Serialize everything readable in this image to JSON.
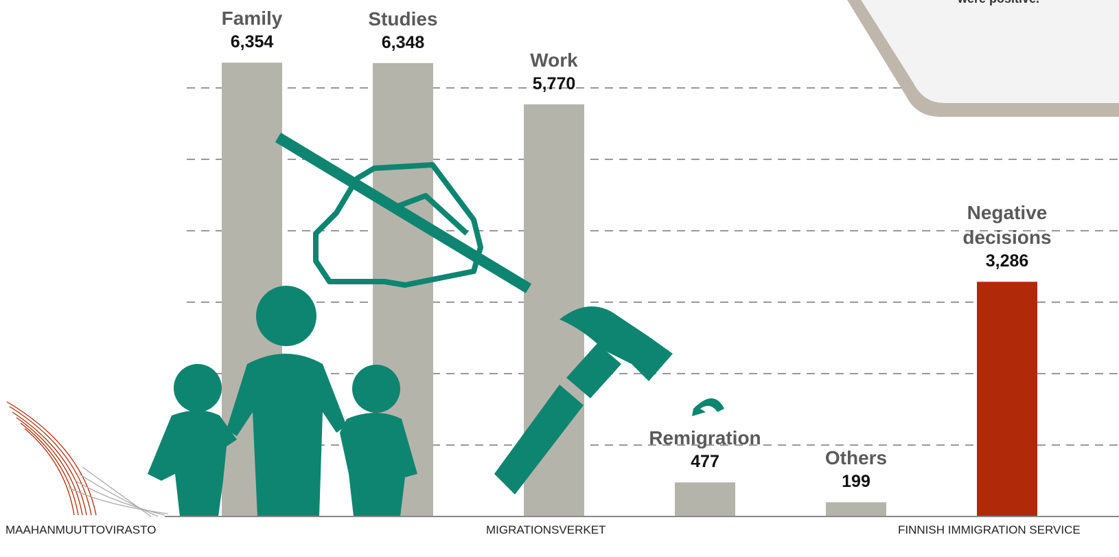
{
  "chart_data": {
    "type": "bar",
    "annotation": "were positive.",
    "categories": [
      "Family",
      "Studies",
      "Work",
      "Remigration",
      "Others",
      "Negative decisions"
    ],
    "values": [
      6354,
      6348,
      5770,
      477,
      199,
      3286
    ],
    "value_labels": [
      "6,354",
      "6,348",
      "5,770",
      "477",
      "199",
      "3,286"
    ],
    "colors": [
      "#b5b4ab",
      "#b5b4ab",
      "#b5b4ab",
      "#b5b4ab",
      "#b5b4ab",
      "#b02a0a"
    ],
    "ylim": [
      0,
      7000
    ],
    "yticks": [
      1000,
      2000,
      3000,
      4000,
      5000,
      6000
    ],
    "grid": true,
    "footer": [
      "MAAHANMUUTTOVIRASTO",
      "MIGRATIONSVERKET",
      "FINNISH IMMIGRATION SERVICE"
    ]
  }
}
